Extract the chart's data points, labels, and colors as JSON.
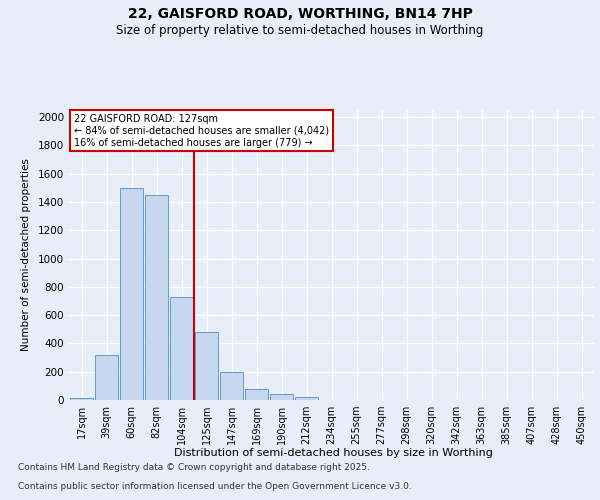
{
  "title_line1": "22, GAISFORD ROAD, WORTHING, BN14 7HP",
  "title_line2": "Size of property relative to semi-detached houses in Worthing",
  "xlabel": "Distribution of semi-detached houses by size in Worthing",
  "ylabel": "Number of semi-detached properties",
  "categories": [
    "17sqm",
    "39sqm",
    "60sqm",
    "82sqm",
    "104sqm",
    "125sqm",
    "147sqm",
    "169sqm",
    "190sqm",
    "212sqm",
    "234sqm",
    "255sqm",
    "277sqm",
    "298sqm",
    "320sqm",
    "342sqm",
    "363sqm",
    "385sqm",
    "407sqm",
    "428sqm",
    "450sqm"
  ],
  "values": [
    15,
    315,
    1500,
    1450,
    725,
    480,
    200,
    80,
    45,
    20,
    0,
    0,
    0,
    0,
    0,
    0,
    0,
    0,
    0,
    0,
    0
  ],
  "bar_color": "#c5d8f0",
  "bar_edge_color": "#6699cc",
  "vline_color": "#cc0000",
  "vline_x": 4.5,
  "annotation_title": "22 GAISFORD ROAD: 127sqm",
  "annotation_line1": "← 84% of semi-detached houses are smaller (4,042)",
  "annotation_line2": "16% of semi-detached houses are larger (779) →",
  "annotation_box_color": "#cc0000",
  "ylim": [
    0,
    2050
  ],
  "yticks": [
    0,
    200,
    400,
    600,
    800,
    1000,
    1200,
    1400,
    1600,
    1800,
    2000
  ],
  "footnote_line1": "Contains HM Land Registry data © Crown copyright and database right 2025.",
  "footnote_line2": "Contains public sector information licensed under the Open Government Licence v3.0.",
  "bg_color": "#e8eef8",
  "plot_bg_color": "#e8eef8"
}
